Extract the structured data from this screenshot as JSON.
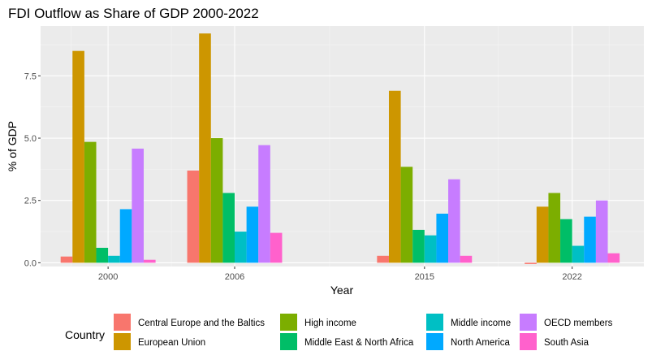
{
  "chart_data": {
    "type": "bar",
    "title": "FDI Outflow as Share of GDP 2000-2022",
    "xlabel": "Year",
    "ylabel": "% of GDP",
    "x": [
      2000,
      2006,
      2015,
      2022
    ],
    "x_tick_labels": [
      "2000",
      "2006",
      "2015",
      "2022"
    ],
    "ylim": [
      -0.15,
      9.5
    ],
    "y_ticks": [
      0,
      2.5,
      5,
      7.5
    ],
    "y_tick_labels": [
      "0.0",
      "2.5",
      "5.0",
      "7.5"
    ],
    "grid": true,
    "legend_title": "Country",
    "legend_position": "bottom",
    "series": [
      {
        "name": "Central Europe and the Baltics",
        "color": "#F8766D",
        "values": [
          0.25,
          3.7,
          0.28,
          -0.05
        ]
      },
      {
        "name": "European Union",
        "color": "#CD9600",
        "values": [
          8.5,
          9.2,
          6.9,
          2.25
        ]
      },
      {
        "name": "High income",
        "color": "#7CAE00",
        "values": [
          4.85,
          5.0,
          3.85,
          2.8
        ]
      },
      {
        "name": "Middle East & North Africa",
        "color": "#00BE67",
        "values": [
          0.6,
          2.8,
          1.32,
          1.75
        ]
      },
      {
        "name": "Middle income",
        "color": "#00BFC4",
        "values": [
          0.28,
          1.25,
          1.1,
          0.68
        ]
      },
      {
        "name": "North America",
        "color": "#00A9FF",
        "values": [
          2.15,
          2.25,
          1.97,
          1.85
        ]
      },
      {
        "name": "OECD members",
        "color": "#C77CFF",
        "values": [
          4.58,
          4.72,
          3.35,
          2.5
        ]
      },
      {
        "name": "South Asia",
        "color": "#FF61CC",
        "values": [
          0.12,
          1.2,
          0.28,
          0.38
        ]
      }
    ]
  }
}
